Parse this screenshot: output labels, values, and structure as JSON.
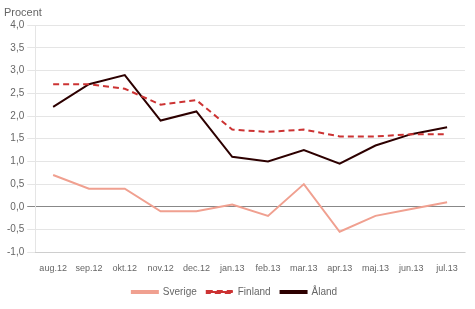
{
  "chart_data": {
    "type": "line",
    "ylabel": "Procent",
    "categories": [
      "aug.12",
      "sep.12",
      "okt.12",
      "nov.12",
      "dec.12",
      "jan.13",
      "feb.13",
      "mar.13",
      "apr.13",
      "maj.13",
      "jun.13",
      "jul.13"
    ],
    "series": [
      {
        "name": "Sverige",
        "color": "#f0a090",
        "line_style": "solid",
        "values": [
          0.7,
          0.4,
          0.4,
          -0.1,
          -0.1,
          0.05,
          -0.2,
          0.5,
          -0.55,
          -0.2,
          -0.05,
          0.1
        ]
      },
      {
        "name": "Finland",
        "color": "#cc3333",
        "line_style": "dashed",
        "values": [
          2.7,
          2.7,
          2.6,
          2.25,
          2.35,
          1.7,
          1.65,
          1.7,
          1.55,
          1.55,
          1.6,
          1.6
        ]
      },
      {
        "name": "Åland",
        "color": "#2d0000",
        "line_style": "solid",
        "values": [
          2.2,
          2.7,
          2.9,
          1.9,
          2.1,
          1.1,
          1.0,
          1.25,
          0.95,
          1.35,
          1.6,
          1.75
        ]
      }
    ],
    "marker": "none",
    "ylim": [
      -1.0,
      4.0
    ],
    "yticks": [
      {
        "value": -1.0,
        "label": "-1,0"
      },
      {
        "value": -0.5,
        "label": "-0,5"
      },
      {
        "value": 0.0,
        "label": "0,0"
      },
      {
        "value": 0.5,
        "label": "0,5"
      },
      {
        "value": 1.0,
        "label": "1,0"
      },
      {
        "value": 1.5,
        "label": "1,5"
      },
      {
        "value": 2.0,
        "label": "2,0"
      },
      {
        "value": 2.5,
        "label": "2,5"
      },
      {
        "value": 3.0,
        "label": "3,0"
      },
      {
        "value": 3.5,
        "label": "3,5"
      },
      {
        "value": 4.0,
        "label": "4,0"
      }
    ],
    "grid": true,
    "legend": "bottom"
  }
}
